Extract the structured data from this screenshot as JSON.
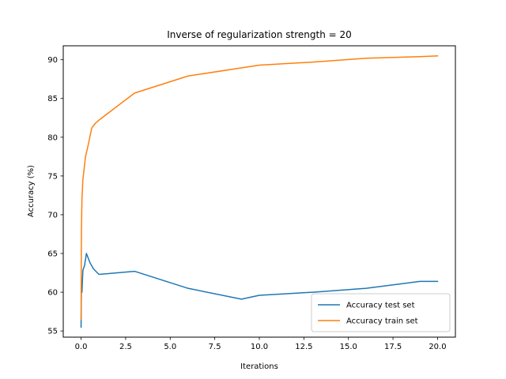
{
  "chart_data": {
    "type": "line",
    "title": "Inverse of regularization strength = 20",
    "xlabel": "Iterations",
    "ylabel": "Accuracy (%)",
    "xlim": [
      -1,
      21
    ],
    "ylim": [
      54.2,
      91.8
    ],
    "xticks": [
      0,
      2.5,
      5,
      7.5,
      10,
      12.5,
      15,
      17.5,
      20
    ],
    "xtick_labels": [
      "0.0",
      "2.5",
      "5.0",
      "7.5",
      "10.0",
      "12.5",
      "15.0",
      "17.5",
      "20.0"
    ],
    "yticks": [
      55,
      60,
      65,
      70,
      75,
      80,
      85,
      90
    ],
    "ytick_labels": [
      "55",
      "60",
      "65",
      "70",
      "75",
      "80",
      "85",
      "90"
    ],
    "grid": false,
    "legend_position": "lower-right",
    "series": [
      {
        "name": "Accuracy test set",
        "color": "#1f77b4",
        "x": [
          0.0,
          0.02,
          0.05,
          0.1,
          0.2,
          0.3,
          0.5,
          0.7,
          1.0,
          3.0,
          6.0,
          9.0,
          10.0,
          13.0,
          16.0,
          19.0,
          20.0
        ],
        "y": [
          55.5,
          61.0,
          60.0,
          62.8,
          63.5,
          65.0,
          63.8,
          63.0,
          62.3,
          62.7,
          60.5,
          59.1,
          59.6,
          60.0,
          60.5,
          61.4,
          61.4
        ]
      },
      {
        "name": "Accuracy train set",
        "color": "#ff7f0e",
        "x": [
          0.0,
          0.01,
          0.02,
          0.05,
          0.1,
          0.15,
          0.25,
          0.4,
          0.6,
          0.8,
          1.0,
          3.0,
          6.0,
          10.0,
          13.0,
          16.0,
          19.0,
          20.0
        ],
        "y": [
          56.5,
          63.5,
          68.0,
          72.0,
          74.5,
          75.5,
          77.5,
          79.0,
          81.2,
          81.8,
          82.2,
          85.7,
          87.9,
          89.3,
          89.7,
          90.2,
          90.4,
          90.5
        ]
      }
    ]
  }
}
